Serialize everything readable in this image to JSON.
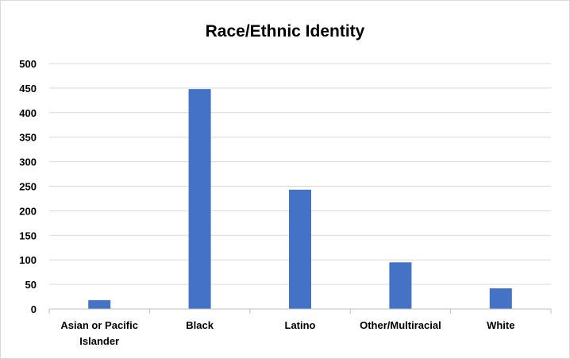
{
  "chart_data": {
    "type": "bar",
    "title": "Race/Ethnic Identity",
    "xlabel": "",
    "ylabel": "",
    "categories": [
      [
        "Asian or Pacific",
        "Islander"
      ],
      [
        "Black"
      ],
      [
        "Latino"
      ],
      [
        "Other/Multiracial"
      ],
      [
        "White"
      ]
    ],
    "values": [
      18,
      448,
      243,
      95,
      42
    ],
    "ylim": [
      0,
      500
    ],
    "yticks": [
      0,
      50,
      100,
      150,
      200,
      250,
      300,
      350,
      400,
      450,
      500
    ],
    "grid": true,
    "legend": "none",
    "bar_color": "#4472c4",
    "grid_color": "#d9d9d9",
    "axis_color": "#bfbfbf"
  }
}
